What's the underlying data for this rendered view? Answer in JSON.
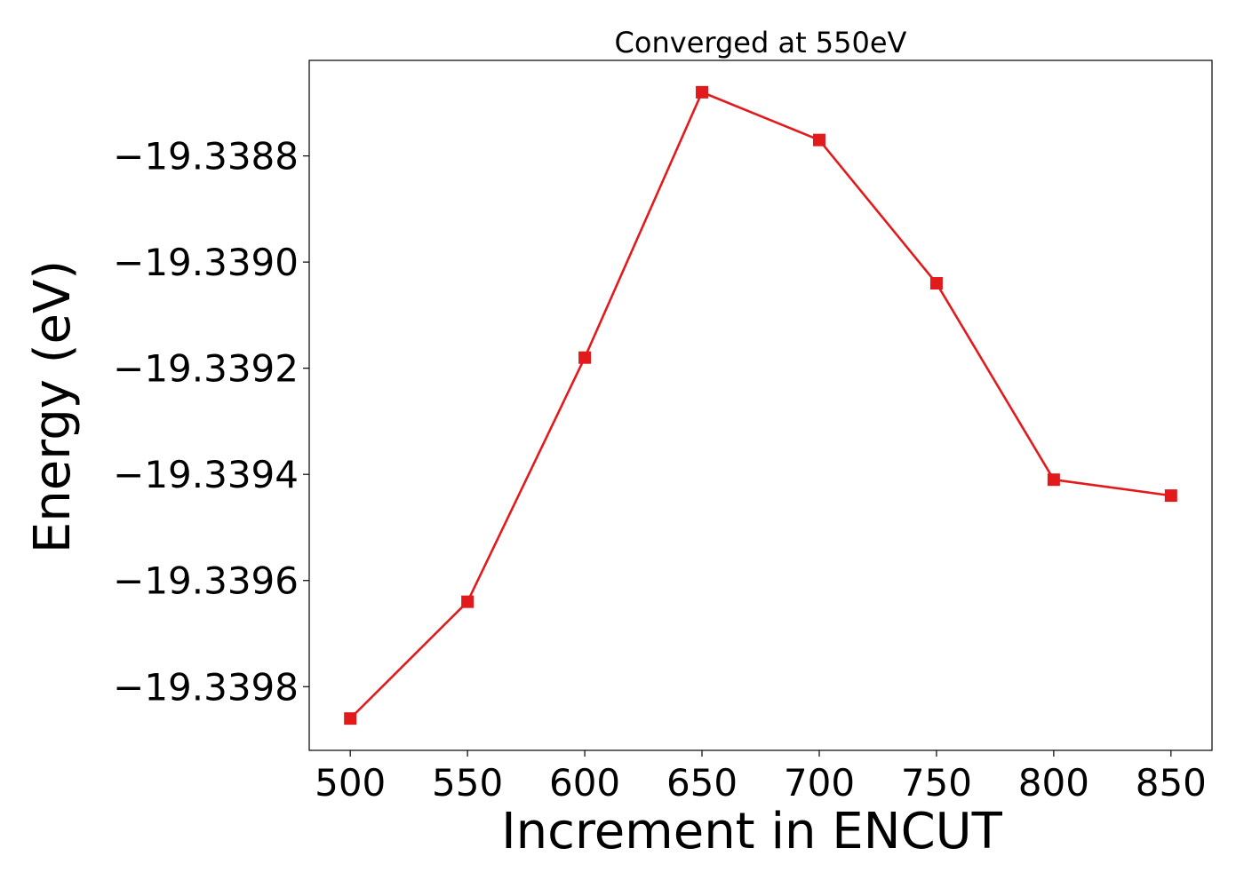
{
  "chart_data": {
    "type": "line",
    "title": "Converged at 550eV",
    "xlabel": "Increment in ENCUT",
    "ylabel": "Energy (eV)",
    "x": [
      500,
      550,
      600,
      650,
      700,
      750,
      800,
      850
    ],
    "series": [
      {
        "values": [
          -19.33986,
          -19.33964,
          -19.33918,
          -19.33868,
          -19.33877,
          -19.33904,
          -19.33941,
          -19.33944
        ],
        "color": "#e31a1c",
        "marker": "square"
      }
    ],
    "xticks": [
      "500",
      "550",
      "600",
      "650",
      "700",
      "750",
      "800",
      "850"
    ],
    "xtick_values": [
      500,
      550,
      600,
      650,
      700,
      750,
      800,
      850
    ],
    "yticks": [
      "−19.3388",
      "−19.3390",
      "−19.3392",
      "−19.3394",
      "−19.3396",
      "−19.3398"
    ],
    "ytick_values": [
      -19.3388,
      -19.339,
      -19.3392,
      -19.3394,
      -19.3396,
      -19.3398
    ],
    "xlim": [
      482.5,
      867.5
    ],
    "ylim": [
      -19.33992,
      -19.33862
    ],
    "grid": false,
    "legend": "none"
  }
}
